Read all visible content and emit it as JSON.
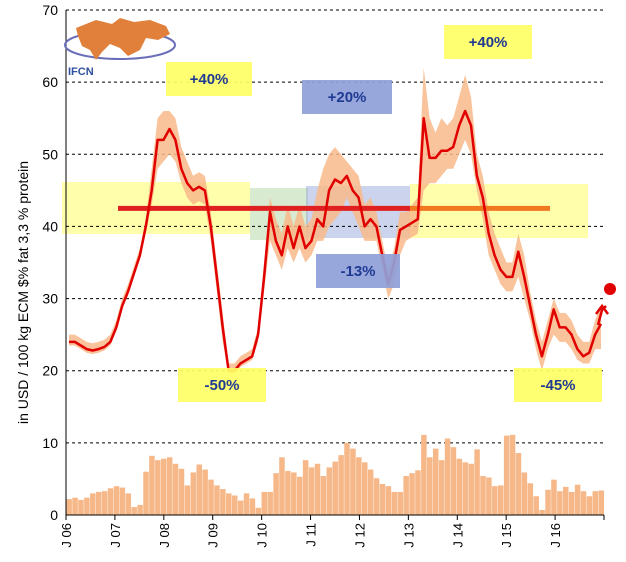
{
  "chart_data": {
    "type": "line",
    "title": "",
    "ylabel": "in USD / 100 kg ECM $% fat 3,3 % protein",
    "xlabel": "",
    "ylim": [
      0,
      70
    ],
    "yticks": [
      0,
      10,
      20,
      30,
      40,
      50,
      60,
      70
    ],
    "grid": "horizontal dashed",
    "x_tick_labels": [
      "J 06",
      "J 07",
      "J 08",
      "J 09",
      "J 10",
      "J 11",
      "J 12",
      "J 13",
      "J 14",
      "J 15",
      "J 16"
    ],
    "logo_text": "IFCN",
    "colors": {
      "price_line": "#e00000",
      "range_band": "#f8b98a",
      "volatility_bars": "#f6b888",
      "avg_line_1": "#e02020",
      "avg_line_2": "#f07820",
      "callout_yellow": "#ffff66",
      "callout_blue": "#8fa0d8",
      "callout_green": "#b8d8a8"
    },
    "annotations": [
      {
        "text": "+40%",
        "color": "yellow"
      },
      {
        "text": "+20%",
        "color": "blue"
      },
      {
        "text": "+40%",
        "color": "yellow"
      },
      {
        "text": "-13%",
        "color": "blue"
      },
      {
        "text": "-50%",
        "color": "yellow"
      },
      {
        "text": "-45%",
        "color": "yellow"
      }
    ],
    "series": [
      {
        "kind": "line",
        "start_month": "2006-01",
        "values": [
          24,
          24,
          23.5,
          23,
          22.8,
          23,
          23.3,
          24,
          26,
          29,
          31,
          33.5,
          36,
          40,
          45,
          52,
          52,
          53.5,
          52,
          48,
          46,
          45,
          45.5,
          45,
          40,
          33,
          26,
          20,
          20,
          21,
          21.5,
          22,
          25,
          33,
          42,
          38,
          36,
          40,
          37,
          40,
          37,
          38,
          41,
          40,
          45,
          46.5,
          46,
          47,
          45,
          44,
          40,
          41,
          40,
          36,
          32,
          35,
          39.5,
          40,
          40.5,
          41,
          55,
          49.5,
          49.5,
          50.5,
          50.5,
          51,
          54,
          56,
          54,
          47,
          44,
          39,
          36,
          34,
          33,
          33,
          36.5,
          33,
          29,
          25,
          22,
          25,
          28.5,
          26,
          26,
          25,
          23,
          22,
          22.5,
          25,
          26.5
        ],
        "low": [
          23.5,
          23.5,
          23,
          22.5,
          22.3,
          22.5,
          22.8,
          23.5,
          25.5,
          28.5,
          30.5,
          33,
          35.5,
          39,
          43,
          48,
          49,
          50,
          49,
          46,
          44,
          43,
          43.5,
          43,
          38,
          31,
          24,
          19.5,
          19.5,
          20.5,
          21,
          21.5,
          24,
          31,
          38,
          36,
          34,
          37,
          35,
          37,
          35,
          36,
          38,
          38,
          40,
          41,
          42,
          44,
          42,
          40,
          38,
          38,
          38,
          34,
          30,
          32,
          36,
          38,
          38.5,
          39,
          45,
          46,
          46,
          47,
          48,
          48,
          50,
          52,
          50,
          45,
          41,
          36,
          34,
          32,
          31,
          31,
          33,
          30,
          27,
          23,
          20,
          23,
          25,
          24,
          24,
          23,
          21.5,
          21,
          21,
          23,
          23
        ],
        "high": [
          25,
          25,
          24.5,
          24,
          23.8,
          24,
          24.3,
          25,
          27,
          30,
          32,
          34.5,
          37,
          41,
          48,
          55,
          56,
          56,
          55,
          51,
          49,
          47,
          47.5,
          47,
          42,
          35,
          28,
          21,
          21,
          22,
          22.5,
          23,
          26,
          35,
          44,
          41,
          39,
          43,
          40,
          43,
          40,
          41,
          45,
          48,
          50,
          51,
          50,
          49,
          48,
          47,
          43,
          44,
          42,
          38,
          34,
          37,
          42,
          42,
          43,
          44,
          62,
          55,
          53,
          55,
          54,
          55,
          58,
          61,
          58,
          50,
          47,
          42,
          39,
          37,
          35,
          35,
          39,
          36,
          31,
          27,
          24,
          27,
          30,
          28,
          28,
          27,
          25,
          24,
          24,
          27,
          29
        ]
      },
      {
        "kind": "bar",
        "name_hidden": "monthly volatility",
        "values": [
          2.2,
          2.4,
          2.1,
          2.4,
          3.0,
          3.2,
          3.3,
          3.7,
          4.0,
          3.8,
          3.0,
          1.1,
          1.4,
          6.0,
          8.2,
          7.6,
          7.8,
          8.0,
          7.1,
          6.4,
          4.1,
          5.9,
          7.0,
          6.3,
          4.9,
          4.1,
          3.6,
          3.0,
          2.7,
          2.0,
          3.0,
          2.3,
          1.0,
          3.2,
          3.2,
          5.8,
          8.0,
          6.1,
          5.9,
          5.3,
          7.6,
          6.6,
          7.1,
          5.4,
          6.6,
          7.4,
          8.3,
          10.0,
          9.2,
          8.0,
          7.3,
          6.3,
          5.1,
          4.3,
          4.0,
          3.2,
          3.2,
          5.4,
          5.8,
          6.2,
          11.1,
          8.0,
          9.2,
          7.6,
          10.6,
          9.4,
          7.8,
          7.3,
          7.1,
          9.1,
          5.4,
          5.2,
          4.0,
          4.1,
          11.0,
          11.1,
          8.6,
          5.9,
          4.4,
          2.6,
          0.7,
          3.5,
          4.9,
          3.3,
          3.9,
          3.2,
          4.2,
          3.3,
          2.6,
          3.3,
          3.4
        ]
      },
      {
        "kind": "avg_line",
        "values": [
          42.5,
          42.5
        ]
      }
    ]
  }
}
